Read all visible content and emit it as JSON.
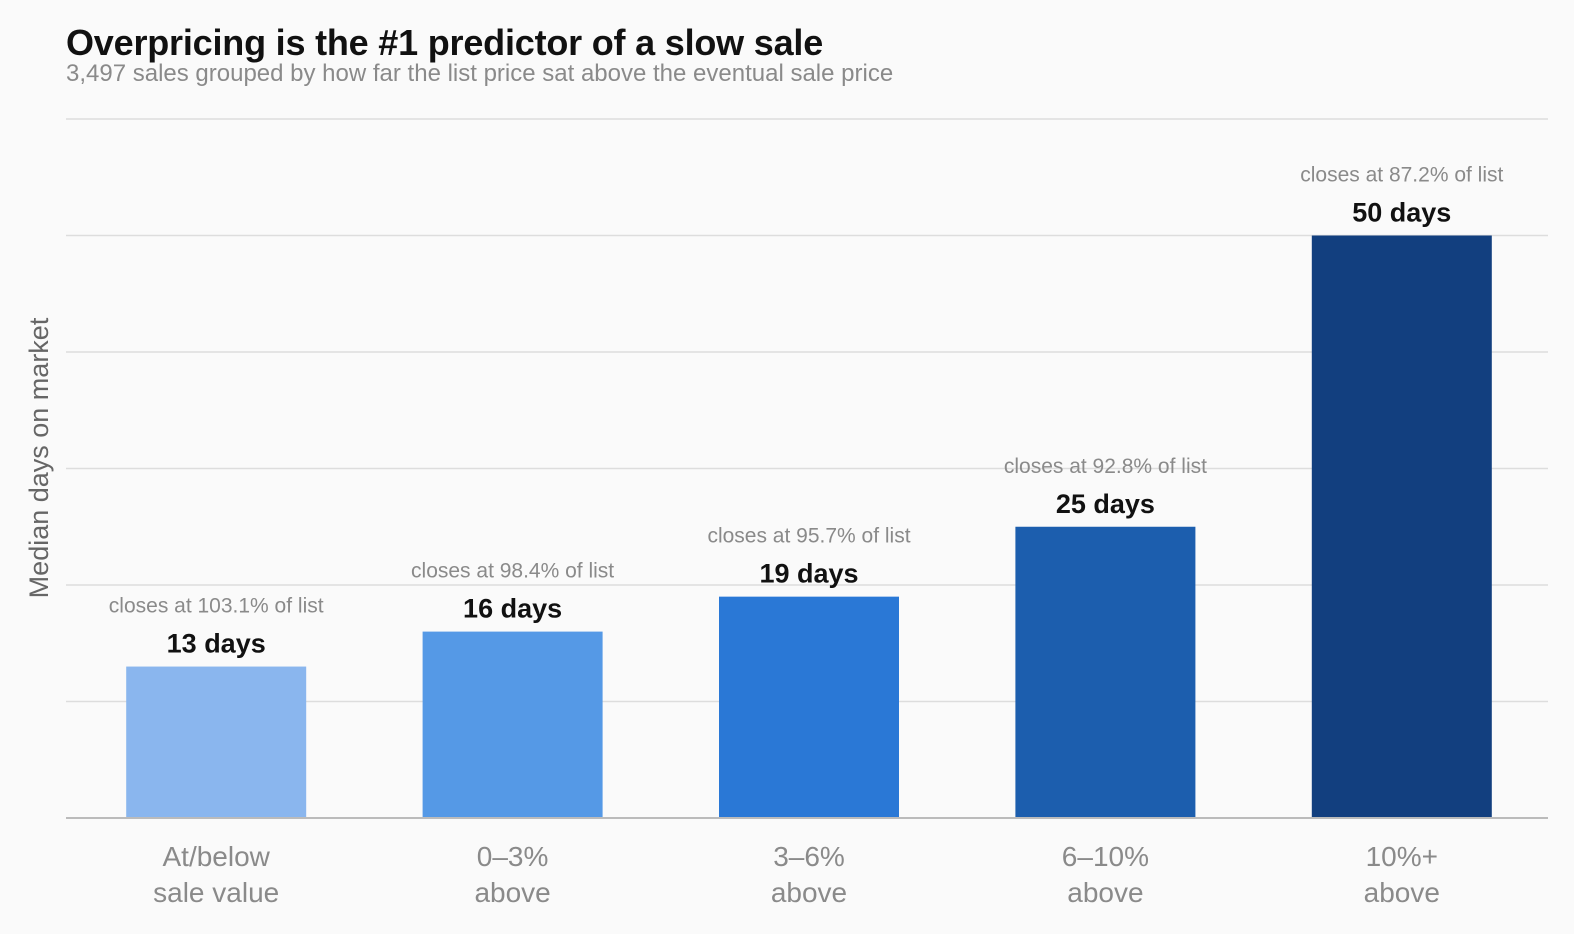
{
  "chart_data": {
    "type": "bar",
    "title": "Overpricing is the #1 predictor of a slow sale",
    "subtitle": "3,497 sales grouped by how far the list price sat above the eventual sale price",
    "ylabel": "Median days on market",
    "xlabel": "",
    "ylim": [
      0,
      60
    ],
    "grid": true,
    "categories": [
      [
        "At/below",
        "sale value"
      ],
      [
        "0–3%",
        "above"
      ],
      [
        "3–6%",
        "above"
      ],
      [
        "6–10%",
        "above"
      ],
      [
        "10%+",
        "above"
      ]
    ],
    "values": [
      13,
      16,
      19,
      25,
      50
    ],
    "value_labels": [
      "13 days",
      "16 days",
      "19 days",
      "25 days",
      "50 days"
    ],
    "annotations": [
      "closes at 103.1% of list",
      "closes at 98.4% of list",
      "closes at 95.7% of list",
      "closes at 92.8% of list",
      "closes at 87.2% of list"
    ],
    "colors": [
      "#8ab6ee",
      "#5599e6",
      "#2a78d6",
      "#1c5eae",
      "#123f7f"
    ]
  },
  "style": {
    "grid_color": "#dddddd",
    "axis_color": "#bbbbbb",
    "tick_label_color": "#8a8a8a",
    "annotation_color": "#8a8a8a",
    "value_label_color": "#111111",
    "ylabel_color": "#666666"
  }
}
